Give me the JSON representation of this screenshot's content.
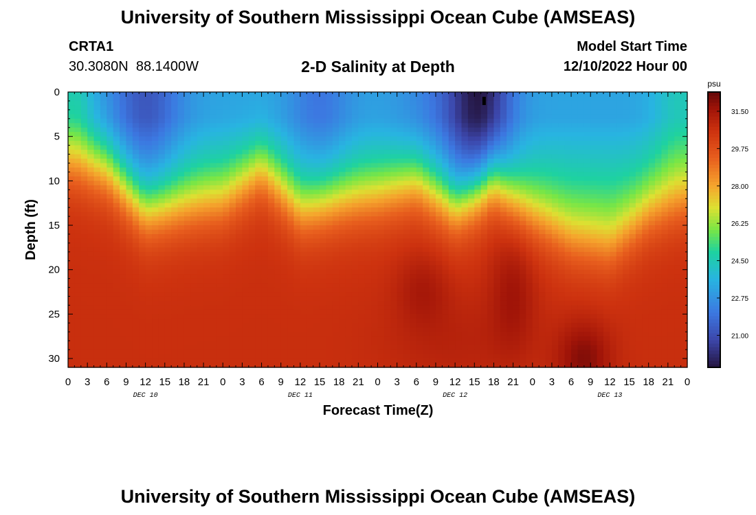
{
  "header": {
    "title": "University of Southern Mississippi Ocean Cube (AMSEAS)",
    "station_id": "CRTA1",
    "station_coords": "30.3080N  88.1400W",
    "plot_title": "2-D Salinity at Depth",
    "model_start_label": "Model Start Time",
    "model_start_value": "12/10/2022 Hour 00"
  },
  "footer": {
    "title": "University of Southern Mississippi Ocean Cube (AMSEAS)"
  },
  "chart_data": {
    "type": "heatmap",
    "title": "2-D Salinity at Depth",
    "xlabel": "Forecast Time(Z)",
    "ylabel": "Depth (ft)",
    "xlim": [
      0,
      96
    ],
    "ylim": [
      0,
      31
    ],
    "y_inverted": true,
    "x_ticks": [
      0,
      3,
      6,
      9,
      12,
      15,
      18,
      21,
      24,
      27,
      30,
      33,
      36,
      39,
      42,
      45,
      48,
      51,
      54,
      57,
      60,
      63,
      66,
      69,
      72,
      75,
      78,
      81,
      84,
      87,
      90,
      93,
      96
    ],
    "x_tick_labels": [
      "0",
      "3",
      "6",
      "9",
      "12",
      "15",
      "18",
      "21",
      "0",
      "3",
      "6",
      "9",
      "12",
      "15",
      "18",
      "21",
      "0",
      "3",
      "6",
      "9",
      "12",
      "15",
      "18",
      "21",
      "0",
      "3",
      "6",
      "9",
      "12",
      "15",
      "18",
      "21",
      "0"
    ],
    "date_labels": [
      {
        "label": "DEC 10",
        "hour": 12
      },
      {
        "label": "DEC 11",
        "hour": 36
      },
      {
        "label": "DEC 12",
        "hour": 60
      },
      {
        "label": "DEC 13",
        "hour": 84
      }
    ],
    "y_ticks": [
      0,
      5,
      10,
      15,
      20,
      25,
      30
    ],
    "y_tick_labels": [
      "0",
      "5",
      "10",
      "15",
      "20",
      "25",
      "30"
    ],
    "colorbar": {
      "unit": "psu",
      "range": [
        19.5,
        32.4
      ],
      "ticks": [
        31.5,
        29.75,
        28.0,
        26.25,
        24.5,
        22.75,
        21.0
      ],
      "tick_labels": [
        "31.50",
        "29.75",
        "28.00",
        "26.25",
        "24.50",
        "22.75",
        "21.00"
      ]
    },
    "marker": {
      "hour": 64.5,
      "depth": 1
    },
    "halocline_depth_ft": {
      "hours": [
        0,
        6,
        12,
        18,
        24,
        30,
        36,
        42,
        48,
        54,
        60,
        66,
        72,
        78,
        84,
        90,
        96
      ],
      "values": [
        8,
        9,
        13.5,
        13,
        12.5,
        9,
        13.5,
        12.5,
        12,
        10.5,
        13,
        10,
        14,
        17,
        18,
        14,
        12.5
      ]
    }
  }
}
